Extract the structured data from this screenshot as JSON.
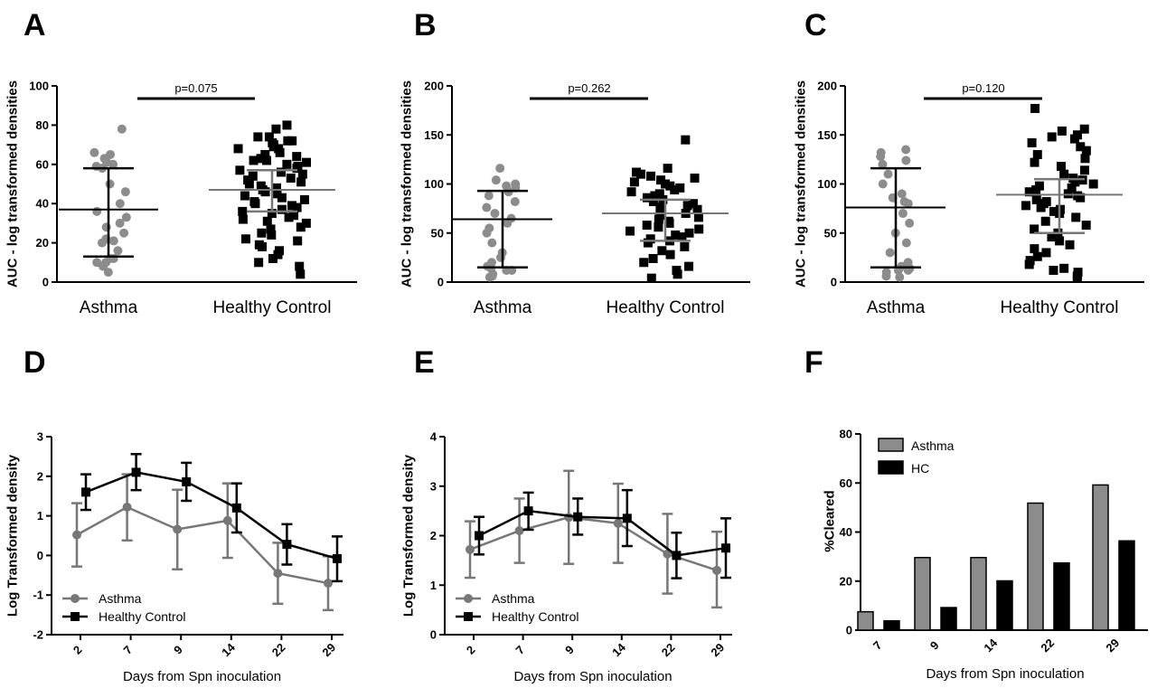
{
  "panels_labels": [
    "A",
    "B",
    "C",
    "D",
    "E",
    "F"
  ],
  "colors": {
    "asthma": "#8c8c8c",
    "healthy": "#000000",
    "grey_line": "#777777"
  },
  "chart_data": [
    {
      "id": "A",
      "type": "scatter",
      "ylabel": "AUC - log transformed densities",
      "categories": [
        "Asthma",
        "Healthy Control"
      ],
      "ylim": [
        0,
        100
      ],
      "yticks": [
        0,
        20,
        40,
        60,
        80,
        100
      ],
      "annotation": "p=0.075",
      "groups": [
        {
          "name": "Asthma",
          "marker": "circle",
          "points": [
            78,
            66,
            65,
            63,
            61,
            60,
            59,
            58,
            50,
            46,
            40,
            36,
            33,
            30,
            28,
            25,
            22,
            21,
            20,
            16,
            12,
            12,
            10,
            10,
            8,
            5
          ],
          "median": 37,
          "iqr": [
            13,
            58
          ]
        },
        {
          "name": "Healthy Control",
          "marker": "square",
          "points": [
            80,
            78,
            74,
            74,
            72,
            72,
            71,
            70,
            69,
            68,
            68,
            66,
            65,
            64,
            63,
            62,
            62,
            61,
            60,
            59,
            58,
            57,
            56,
            55,
            54,
            53,
            52,
            51,
            50,
            49,
            48,
            47,
            46,
            45,
            44,
            43,
            42,
            41,
            40,
            39,
            38,
            37,
            36,
            35,
            34,
            33,
            32,
            31,
            30,
            28,
            27,
            25,
            24,
            22,
            21,
            19,
            18,
            16,
            14,
            12,
            10,
            8,
            4
          ],
          "median": 47,
          "iqr": [
            36,
            57
          ]
        }
      ]
    },
    {
      "id": "B",
      "type": "scatter",
      "ylabel": "AUC - log transformed densities",
      "categories": [
        "Asthma",
        "Healthy Control"
      ],
      "ylim": [
        0,
        200
      ],
      "yticks": [
        0,
        50,
        100,
        150,
        200
      ],
      "annotation": "p=0.262",
      "groups": [
        {
          "name": "Asthma",
          "marker": "circle",
          "points": [
            116,
            104,
            100,
            98,
            96,
            92,
            88,
            82,
            76,
            70,
            65,
            60,
            55,
            50,
            40,
            30,
            25,
            20,
            16,
            14,
            12,
            12,
            8,
            6,
            5
          ],
          "median": 64,
          "iqr": [
            15,
            93
          ]
        },
        {
          "name": "Healthy Control",
          "marker": "square",
          "points": [
            145,
            116,
            112,
            110,
            108,
            106,
            104,
            102,
            100,
            98,
            96,
            94,
            92,
            90,
            88,
            86,
            84,
            82,
            80,
            78,
            76,
            74,
            72,
            70,
            68,
            66,
            64,
            62,
            60,
            58,
            56,
            54,
            52,
            50,
            48,
            46,
            44,
            42,
            40,
            36,
            32,
            28,
            24,
            20,
            16,
            12,
            8,
            4
          ],
          "median": 70,
          "iqr": [
            42,
            84
          ]
        }
      ]
    },
    {
      "id": "C",
      "type": "scatter",
      "ylabel": "AUC - log transformed densities",
      "categories": [
        "Asthma",
        "Healthy Control"
      ],
      "ylim": [
        0,
        200
      ],
      "yticks": [
        0,
        50,
        100,
        150,
        200
      ],
      "annotation": "p=0.120",
      "groups": [
        {
          "name": "Asthma",
          "marker": "circle",
          "points": [
            135,
            132,
            128,
            124,
            120,
            110,
            100,
            90,
            86,
            82,
            80,
            70,
            60,
            50,
            40,
            30,
            20,
            16,
            14,
            12,
            12,
            10,
            6,
            5
          ],
          "median": 76,
          "iqr": [
            15,
            116
          ]
        },
        {
          "name": "Healthy Control",
          "marker": "square",
          "points": [
            177,
            156,
            154,
            150,
            148,
            146,
            142,
            138,
            134,
            130,
            126,
            122,
            118,
            114,
            110,
            106,
            104,
            102,
            100,
            98,
            96,
            94,
            92,
            90,
            88,
            86,
            84,
            82,
            80,
            78,
            76,
            74,
            72,
            70,
            66,
            62,
            58,
            54,
            50,
            46,
            42,
            38,
            34,
            30,
            26,
            22,
            18,
            14,
            12,
            10,
            6,
            4
          ],
          "median": 89,
          "iqr": [
            50,
            105
          ]
        }
      ]
    },
    {
      "id": "D",
      "type": "line",
      "ylabel": "Log Transformed density",
      "xlabel": "Days from Spn inoculation",
      "categories": [
        "2",
        "7",
        "9",
        "14",
        "22",
        "29"
      ],
      "ylim": [
        -2,
        3
      ],
      "yticks": [
        -2,
        -1,
        0,
        1,
        2,
        3
      ],
      "legend_position": "bottom-left",
      "series": [
        {
          "name": "Asthma",
          "marker": "circle",
          "values": [
            0.52,
            1.22,
            0.66,
            0.88,
            -0.45,
            -0.7
          ],
          "err_low": [
            -0.28,
            0.38,
            -0.35,
            -0.06,
            -1.22,
            -1.38
          ],
          "err_high": [
            1.32,
            2.05,
            1.66,
            1.82,
            0.32,
            -0.02
          ]
        },
        {
          "name": "Healthy Control",
          "marker": "square",
          "values": [
            1.6,
            2.1,
            1.86,
            1.2,
            0.28,
            -0.08
          ],
          "err_low": [
            1.15,
            1.65,
            1.38,
            0.58,
            -0.23,
            -0.65
          ],
          "err_high": [
            2.05,
            2.56,
            2.34,
            1.82,
            0.79,
            0.48
          ]
        }
      ]
    },
    {
      "id": "E",
      "type": "line",
      "ylabel": "Log Transformed density",
      "xlabel": "Days from Spn inoculation",
      "categories": [
        "2",
        "7",
        "9",
        "14",
        "22",
        "29"
      ],
      "ylim": [
        0,
        4
      ],
      "yticks": [
        0,
        1,
        2,
        3,
        4
      ],
      "legend_position": "bottom-left",
      "series": [
        {
          "name": "Asthma",
          "marker": "circle",
          "values": [
            1.72,
            2.1,
            2.37,
            2.25,
            1.63,
            1.3
          ],
          "err_low": [
            1.15,
            1.45,
            1.43,
            1.45,
            0.83,
            0.55
          ],
          "err_high": [
            2.29,
            2.75,
            3.31,
            3.05,
            2.44,
            2.08
          ]
        },
        {
          "name": "Healthy Control",
          "marker": "square",
          "values": [
            2.0,
            2.5,
            2.38,
            2.35,
            1.6,
            1.75
          ],
          "err_low": [
            1.62,
            2.12,
            2.02,
            1.79,
            1.14,
            1.15
          ],
          "err_high": [
            2.38,
            2.87,
            2.75,
            2.92,
            2.06,
            2.35
          ]
        }
      ]
    },
    {
      "id": "F",
      "type": "bar",
      "ylabel": "%Cleared",
      "xlabel": "Days from Spn inoculation",
      "categories": [
        "7",
        "9",
        "14",
        "22",
        "29"
      ],
      "ylim": [
        0,
        80
      ],
      "yticks": [
        0,
        20,
        40,
        60,
        80
      ],
      "legend_position": "top-left",
      "series": [
        {
          "name": "Asthma",
          "color": "#8c8c8c",
          "values": [
            7.5,
            29.6,
            29.6,
            51.8,
            59.2
          ]
        },
        {
          "name": "HC",
          "color": "#000000",
          "values": [
            3.8,
            9.2,
            20.1,
            27.4,
            36.4
          ]
        }
      ]
    }
  ]
}
